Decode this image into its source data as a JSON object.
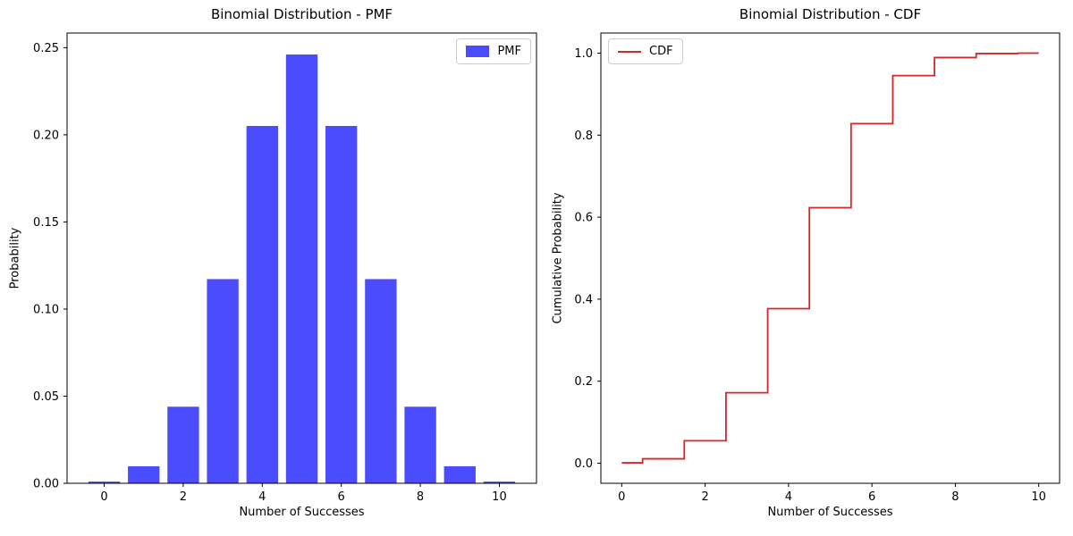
{
  "figure": {
    "background": "#ffffff",
    "text_color": "#000000",
    "spine_color": "#000000"
  },
  "chart_data": [
    {
      "type": "bar",
      "title": "Binomial Distribution - PMF",
      "xlabel": "Number of Successes",
      "ylabel": "Probability",
      "legend": {
        "label": "PMF",
        "position": "upper right",
        "swatch": "bar"
      },
      "color": "rgba(0,0,255,0.7)",
      "color_on_white_hex": "#4d4dff",
      "bar_width": 0.8,
      "x": [
        0,
        1,
        2,
        3,
        4,
        5,
        6,
        7,
        8,
        9,
        10
      ],
      "values": [
        0.000977,
        0.009766,
        0.043945,
        0.117188,
        0.205078,
        0.246094,
        0.205078,
        0.117188,
        0.043945,
        0.009766,
        0.000977
      ],
      "xlim": [
        -0.94,
        10.94
      ],
      "ylim": [
        0,
        0.2584
      ],
      "xtick_values": [
        0,
        2,
        4,
        6,
        8,
        10
      ],
      "xtick_labels": [
        "0",
        "2",
        "4",
        "6",
        "8",
        "10"
      ],
      "ytick_values": [
        0.0,
        0.05,
        0.1,
        0.15,
        0.2,
        0.25
      ],
      "ytick_labels": [
        "0.00",
        "0.05",
        "0.10",
        "0.15",
        "0.20",
        "0.25"
      ],
      "grid": false
    },
    {
      "type": "step",
      "step_where": "mid",
      "title": "Binomial Distribution - CDF",
      "xlabel": "Number of Successes",
      "ylabel": "Cumulative Probability",
      "legend": {
        "label": "CDF",
        "position": "upper left",
        "swatch": "line"
      },
      "color": "#d62728",
      "line_width": 1.8,
      "x": [
        0,
        1,
        2,
        3,
        4,
        5,
        6,
        7,
        8,
        9,
        10
      ],
      "values": [
        0.000977,
        0.010742,
        0.054688,
        0.171875,
        0.376953,
        0.623047,
        0.828125,
        0.945312,
        0.989258,
        0.999023,
        1.0
      ],
      "xlim": [
        -0.5,
        10.5
      ],
      "ylim": [
        -0.049,
        1.049
      ],
      "xtick_values": [
        0,
        2,
        4,
        6,
        8,
        10
      ],
      "xtick_labels": [
        "0",
        "2",
        "4",
        "6",
        "8",
        "10"
      ],
      "ytick_values": [
        0.0,
        0.2,
        0.4,
        0.6,
        0.8,
        1.0
      ],
      "ytick_labels": [
        "0.0",
        "0.2",
        "0.4",
        "0.6",
        "0.8",
        "1.0"
      ],
      "grid": false
    }
  ]
}
